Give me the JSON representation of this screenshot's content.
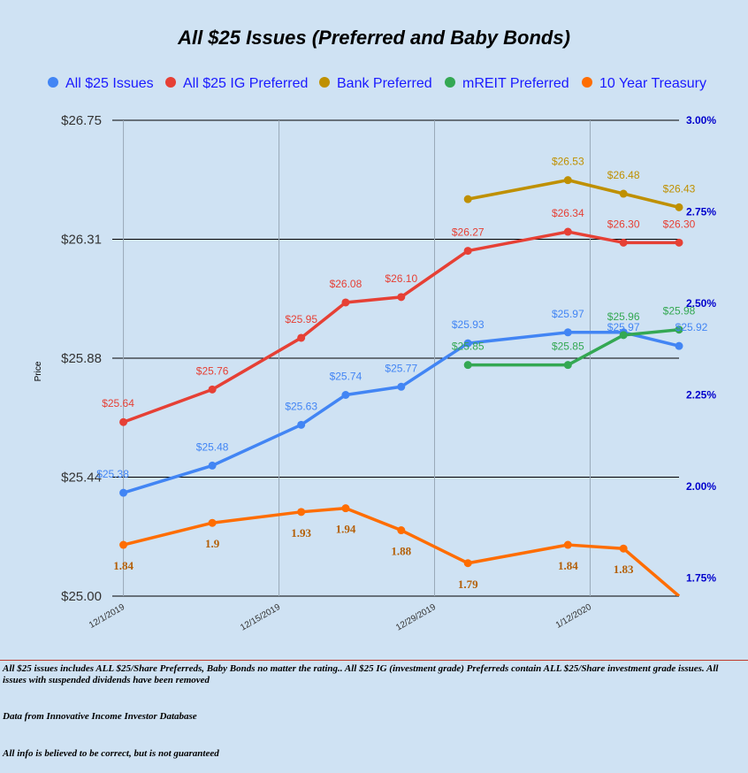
{
  "chart_data": {
    "type": "line",
    "title": "All $25 Issues (Preferred and Baby Bonds)",
    "ylabel": "Price",
    "ylim": [
      25.0,
      26.75
    ],
    "y_ticks": [
      "$26.75",
      "$26.31",
      "$25.88",
      "$25.44",
      "$25.00"
    ],
    "y2lim": [
      1.7,
      3.0
    ],
    "y2_ticks": [
      "3.00%",
      "2.75%",
      "2.50%",
      "2.25%",
      "2.00%",
      "1.75%"
    ],
    "x_ticks": [
      "12/1/2019",
      "12/15/2019",
      "12/29/2019",
      "1/12/2020"
    ],
    "legend_position": "top",
    "grid": true,
    "colors": {
      "all25": "#4285f4",
      "ig": "#e64035",
      "bank": "#bf9000",
      "mreit": "#34a853",
      "treasury": "#ff6d01",
      "treasury_label": "#b45f06",
      "right_axis": "#0000cc"
    },
    "series": [
      {
        "name": "All $25 Issues",
        "color": "#4285f4",
        "axis": "left",
        "x": [
          "2019-12-01",
          "2019-12-09",
          "2019-12-17",
          "2019-12-21",
          "2019-12-26",
          "2020-01-01",
          "2020-01-10",
          "2020-01-15",
          "2020-01-20"
        ],
        "values": [
          25.38,
          25.48,
          25.63,
          25.74,
          25.77,
          25.93,
          25.97,
          25.97,
          25.92
        ],
        "labels": [
          "$25.38",
          "$25.48",
          "$25.63",
          "$25.74",
          "$25.77",
          "$25.93",
          "$25.97",
          "$25.97",
          "$25.92"
        ]
      },
      {
        "name": "All $25 IG Preferred",
        "color": "#e64035",
        "axis": "left",
        "x": [
          "2019-12-01",
          "2019-12-09",
          "2019-12-17",
          "2019-12-21",
          "2019-12-26",
          "2020-01-01",
          "2020-01-10",
          "2020-01-15",
          "2020-01-20"
        ],
        "values": [
          25.64,
          25.76,
          25.95,
          26.08,
          26.1,
          26.27,
          26.34,
          26.3,
          26.3
        ],
        "labels": [
          "$25.64",
          "$25.76",
          "$25.95",
          "$26.08",
          "$26.10",
          "$26.27",
          "$26.34",
          "$26.30",
          "$26.30"
        ]
      },
      {
        "name": "Bank Preferred",
        "color": "#bf9000",
        "axis": "left",
        "x": [
          "2020-01-01",
          "2020-01-10",
          "2020-01-15",
          "2020-01-20"
        ],
        "values": [
          26.46,
          26.53,
          26.48,
          26.43
        ],
        "labels": [
          "",
          "$26.53",
          "$26.48",
          "$26.43"
        ]
      },
      {
        "name": "mREIT Preferred",
        "color": "#34a853",
        "axis": "left",
        "x": [
          "2020-01-01",
          "2020-01-10",
          "2020-01-15",
          "2020-01-20"
        ],
        "values": [
          25.85,
          25.85,
          25.96,
          25.98
        ],
        "labels": [
          "$25.85",
          "$25.85",
          "$25.96",
          "$25.98"
        ]
      },
      {
        "name": "10 Year Treasury",
        "color": "#ff6d01",
        "axis": "right",
        "x": [
          "2019-12-01",
          "2019-12-09",
          "2019-12-17",
          "2019-12-21",
          "2019-12-26",
          "2020-01-01",
          "2020-01-10",
          "2020-01-15",
          "2020-01-20"
        ],
        "values": [
          1.84,
          1.9,
          1.93,
          1.94,
          1.88,
          1.79,
          1.84,
          1.83,
          1.7
        ],
        "labels": [
          "1.84",
          "1.9",
          "1.93",
          "1.94",
          "1.88",
          "1.79",
          "1.84",
          "1.83",
          ""
        ]
      }
    ]
  },
  "notes": {
    "line1": "All $25 issues includes ALL $25/Share Preferreds, Baby Bonds no matter the rating..  All $25 IG (investment grade) Preferreds contain ALL $25/Share investment grade issues.  All issues with suspended dividends have been removed",
    "line2": "Data from Innovative Income Investor Database",
    "line3": "All info is believed to be correct, but is not guaranteed"
  }
}
